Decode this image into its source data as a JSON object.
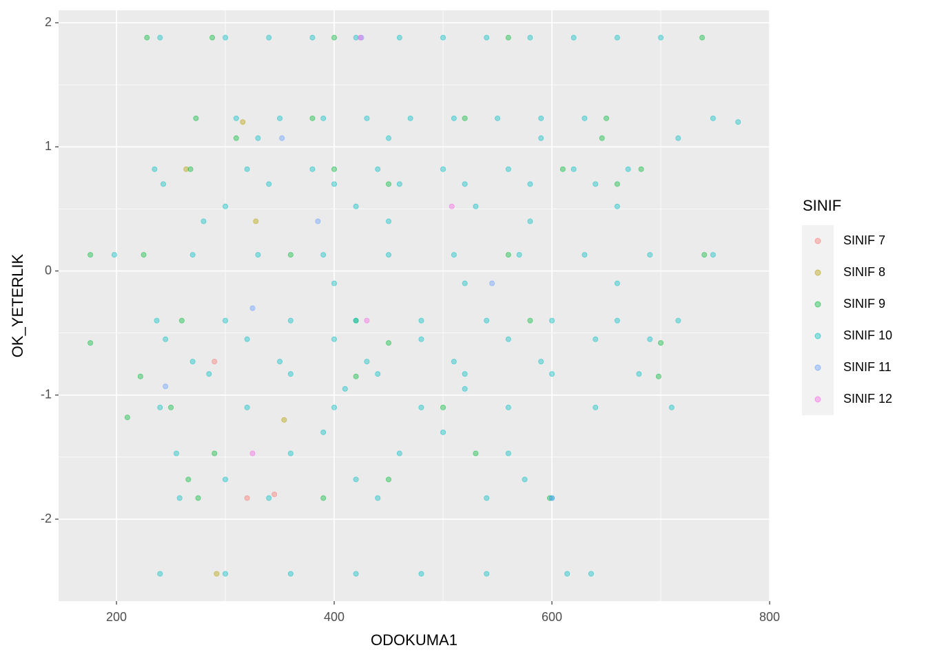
{
  "chart_data": {
    "type": "scatter",
    "x_label": "ODOKUMA1",
    "y_label": "OK_YETERLIK",
    "legend_title": "SINIF",
    "xlim": [
      146.8,
      800.6
    ],
    "xticks": [
      200,
      400,
      600,
      800
    ],
    "ylim": [
      -2.66,
      2.1
    ],
    "yticks": [
      -2,
      -1,
      0,
      1,
      2
    ],
    "grid": true,
    "legend_position": "right",
    "series": [
      {
        "name": "SINIF 7",
        "color": "#F8766D",
        "x": [
          290,
          345,
          320
        ],
        "y": [
          -0.73,
          -1.8,
          -1.83
        ]
      },
      {
        "name": "SINIF 8",
        "color": "#B79F00",
        "x": [
          264,
          328,
          354,
          292,
          316
        ],
        "y": [
          0.82,
          0.4,
          -1.2,
          -2.44,
          1.2
        ]
      },
      {
        "name": "SINIF 9",
        "color": "#00BA38",
        "x": [
          228,
          288,
          400,
          560,
          738,
          273,
          380,
          520,
          650,
          310,
          646,
          268,
          400,
          610,
          682,
          450,
          660,
          176,
          225,
          360,
          560,
          740,
          260,
          420,
          580,
          176,
          450,
          700,
          222,
          420,
          698,
          250,
          500,
          210,
          290,
          530,
          266,
          450,
          275,
          390,
          598
        ],
        "y": [
          1.88,
          1.88,
          1.88,
          1.88,
          1.88,
          1.23,
          1.23,
          1.23,
          1.23,
          1.07,
          1.07,
          0.82,
          0.82,
          0.82,
          0.82,
          0.7,
          0.7,
          0.13,
          0.13,
          0.13,
          0.13,
          0.13,
          -0.4,
          -0.4,
          -0.4,
          -0.58,
          -0.58,
          -0.58,
          -0.85,
          -0.85,
          -0.85,
          -1.1,
          -1.1,
          -1.18,
          -1.47,
          -1.47,
          -1.68,
          -1.68,
          -1.83,
          -1.83,
          -1.83
        ]
      },
      {
        "name": "SINIF 10",
        "color": "#00BFC4",
        "x": [
          240,
          300,
          340,
          380,
          420,
          460,
          500,
          540,
          580,
          620,
          660,
          700,
          310,
          350,
          390,
          430,
          470,
          510,
          550,
          590,
          630,
          748,
          771,
          330,
          450,
          590,
          716,
          235,
          320,
          380,
          440,
          500,
          560,
          620,
          670,
          243,
          340,
          400,
          460,
          520,
          580,
          640,
          300,
          420,
          530,
          660,
          280,
          450,
          580,
          198,
          270,
          330,
          390,
          450,
          510,
          570,
          630,
          690,
          748,
          400,
          520,
          660,
          237,
          300,
          360,
          420,
          480,
          540,
          600,
          660,
          716,
          245,
          320,
          400,
          480,
          560,
          640,
          690,
          270,
          350,
          430,
          510,
          590,
          285,
          360,
          440,
          520,
          600,
          680,
          410,
          520,
          240,
          320,
          400,
          480,
          560,
          640,
          710,
          390,
          500,
          255,
          360,
          460,
          560,
          300,
          420,
          575,
          258,
          340,
          440,
          540,
          600,
          240,
          300,
          360,
          420,
          480,
          540,
          614,
          636
        ],
        "y": [
          1.88,
          1.88,
          1.88,
          1.88,
          1.88,
          1.88,
          1.88,
          1.88,
          1.88,
          1.88,
          1.88,
          1.88,
          1.23,
          1.23,
          1.23,
          1.23,
          1.23,
          1.23,
          1.23,
          1.23,
          1.23,
          1.23,
          1.2,
          1.07,
          1.07,
          1.07,
          1.07,
          0.82,
          0.82,
          0.82,
          0.82,
          0.82,
          0.82,
          0.82,
          0.82,
          0.7,
          0.7,
          0.7,
          0.7,
          0.7,
          0.7,
          0.7,
          0.52,
          0.52,
          0.52,
          0.52,
          0.4,
          0.4,
          0.4,
          0.13,
          0.13,
          0.13,
          0.13,
          0.13,
          0.13,
          0.13,
          0.13,
          0.13,
          0.13,
          -0.1,
          -0.1,
          -0.1,
          -0.4,
          -0.4,
          -0.4,
          -0.4,
          -0.4,
          -0.4,
          -0.4,
          -0.4,
          -0.4,
          -0.55,
          -0.55,
          -0.55,
          -0.55,
          -0.55,
          -0.55,
          -0.55,
          -0.73,
          -0.73,
          -0.73,
          -0.73,
          -0.73,
          -0.83,
          -0.83,
          -0.83,
          -0.83,
          -0.83,
          -0.83,
          -0.95,
          -0.95,
          -1.1,
          -1.1,
          -1.1,
          -1.1,
          -1.1,
          -1.1,
          -1.1,
          -1.3,
          -1.3,
          -1.47,
          -1.47,
          -1.47,
          -1.47,
          -1.68,
          -1.68,
          -1.68,
          -1.83,
          -1.83,
          -1.83,
          -1.83,
          -1.83,
          -2.44,
          -2.44,
          -2.44,
          -2.44,
          -2.44,
          -2.44,
          -2.44,
          -2.44
        ]
      },
      {
        "name": "SINIF 11",
        "color": "#619CFF",
        "x": [
          245,
          352,
          385,
          425,
          545,
          600,
          325
        ],
        "y": [
          -0.93,
          1.07,
          0.4,
          1.88,
          -0.1,
          -1.83,
          -0.3
        ]
      },
      {
        "name": "SINIF 12",
        "color": "#F564E3",
        "x": [
          424,
          508,
          430,
          325
        ],
        "y": [
          1.88,
          0.52,
          -0.4,
          -1.47
        ]
      }
    ]
  }
}
